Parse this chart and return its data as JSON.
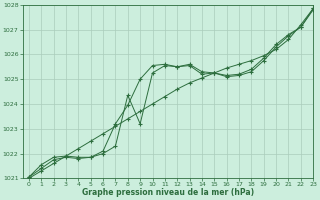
{
  "title": "Graphe pression niveau de la mer (hPa)",
  "bg_color": "#cceedd",
  "grid_color": "#aaccbb",
  "line_color": "#2d6e3e",
  "xlim": [
    -0.5,
    23
  ],
  "ylim": [
    1021,
    1028
  ],
  "yticks": [
    1021,
    1022,
    1023,
    1024,
    1025,
    1026,
    1027,
    1028
  ],
  "xticks": [
    0,
    1,
    2,
    3,
    4,
    5,
    6,
    7,
    8,
    9,
    10,
    11,
    12,
    13,
    14,
    15,
    16,
    17,
    18,
    19,
    20,
    21,
    22,
    23
  ],
  "line1_x": [
    0,
    1,
    2,
    3,
    4,
    5,
    6,
    7,
    8,
    9,
    10,
    11,
    12,
    13,
    14,
    15,
    16,
    17,
    18,
    19,
    20,
    21,
    22,
    23
  ],
  "line1_y": [
    1021.05,
    1021.55,
    1021.85,
    1021.9,
    1021.85,
    1021.85,
    1022.1,
    1023.2,
    1023.95,
    1025.0,
    1025.55,
    1025.6,
    1025.5,
    1025.6,
    1025.3,
    1025.25,
    1025.15,
    1025.2,
    1025.4,
    1025.85,
    1026.4,
    1026.8,
    1027.1,
    1027.85
  ],
  "line2_x": [
    0,
    1,
    2,
    3,
    4,
    5,
    6,
    7,
    8,
    9,
    10,
    11,
    12,
    13,
    14,
    15,
    16,
    17,
    18,
    19,
    20,
    21,
    22,
    23
  ],
  "line2_y": [
    1021.05,
    1021.4,
    1021.75,
    1021.85,
    1021.8,
    1021.85,
    1022.0,
    1022.3,
    1024.35,
    1023.2,
    1025.25,
    1025.55,
    1025.5,
    1025.55,
    1025.2,
    1025.25,
    1025.1,
    1025.15,
    1025.3,
    1025.75,
    1026.3,
    1026.75,
    1027.1,
    1027.8
  ],
  "line3_x": [
    0,
    1,
    2,
    3,
    4,
    5,
    6,
    7,
    8,
    9,
    10,
    11,
    12,
    13,
    14,
    15,
    16,
    17,
    18,
    19,
    20,
    21,
    22,
    23
  ],
  "line3_y": [
    1021.0,
    1021.3,
    1021.6,
    1021.9,
    1022.2,
    1022.5,
    1022.8,
    1023.1,
    1023.4,
    1023.7,
    1024.0,
    1024.3,
    1024.6,
    1024.85,
    1025.05,
    1025.25,
    1025.45,
    1025.6,
    1025.75,
    1025.95,
    1026.2,
    1026.6,
    1027.2,
    1027.85
  ]
}
